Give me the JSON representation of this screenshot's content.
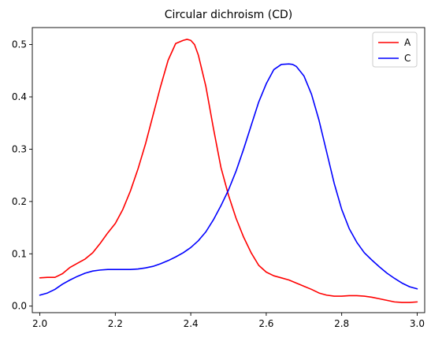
{
  "chart_data": {
    "type": "line",
    "title": "Circular dichroism (CD)",
    "xlabel": "",
    "ylabel": "",
    "xlim": [
      1.98,
      3.02
    ],
    "ylim": [
      -0.0125,
      0.5325
    ],
    "xticks": [
      "2.0",
      "2.2",
      "2.4",
      "2.6",
      "2.8",
      "3.0"
    ],
    "yticks": [
      "0.0",
      "0.1",
      "0.2",
      "0.3",
      "0.4",
      "0.5"
    ],
    "grid": false,
    "legend_position": "top-right",
    "series": [
      {
        "name": "A",
        "color": "#ff0000",
        "x": [
          2.0,
          2.02,
          2.04,
          2.06,
          2.08,
          2.1,
          2.12,
          2.14,
          2.16,
          2.18,
          2.2,
          2.22,
          2.24,
          2.26,
          2.28,
          2.3,
          2.32,
          2.34,
          2.36,
          2.38,
          2.39,
          2.4,
          2.41,
          2.42,
          2.44,
          2.46,
          2.48,
          2.5,
          2.52,
          2.54,
          2.56,
          2.58,
          2.6,
          2.62,
          2.64,
          2.66,
          2.68,
          2.7,
          2.72,
          2.74,
          2.76,
          2.78,
          2.8,
          2.82,
          2.84,
          2.86,
          2.88,
          2.9,
          2.92,
          2.94,
          2.96,
          2.98,
          3.0
        ],
        "y": [
          0.054,
          0.055,
          0.055,
          0.062,
          0.074,
          0.082,
          0.09,
          0.102,
          0.12,
          0.14,
          0.158,
          0.185,
          0.22,
          0.262,
          0.31,
          0.365,
          0.42,
          0.47,
          0.502,
          0.508,
          0.51,
          0.508,
          0.5,
          0.48,
          0.42,
          0.34,
          0.265,
          0.212,
          0.168,
          0.132,
          0.102,
          0.078,
          0.065,
          0.058,
          0.054,
          0.05,
          0.044,
          0.038,
          0.032,
          0.025,
          0.021,
          0.019,
          0.019,
          0.02,
          0.02,
          0.019,
          0.017,
          0.014,
          0.011,
          0.008,
          0.007,
          0.007,
          0.008
        ]
      },
      {
        "name": "C",
        "color": "#0000ff",
        "x": [
          2.0,
          2.02,
          2.04,
          2.06,
          2.08,
          2.1,
          2.12,
          2.14,
          2.16,
          2.18,
          2.2,
          2.22,
          2.24,
          2.26,
          2.28,
          2.3,
          2.32,
          2.34,
          2.36,
          2.38,
          2.4,
          2.42,
          2.44,
          2.46,
          2.48,
          2.5,
          2.52,
          2.54,
          2.56,
          2.58,
          2.6,
          2.62,
          2.64,
          2.66,
          2.67,
          2.68,
          2.7,
          2.72,
          2.74,
          2.76,
          2.78,
          2.8,
          2.82,
          2.84,
          2.86,
          2.88,
          2.9,
          2.92,
          2.94,
          2.96,
          2.98,
          3.0
        ],
        "y": [
          0.021,
          0.025,
          0.032,
          0.042,
          0.05,
          0.057,
          0.063,
          0.067,
          0.069,
          0.07,
          0.07,
          0.07,
          0.07,
          0.071,
          0.073,
          0.076,
          0.081,
          0.087,
          0.094,
          0.102,
          0.112,
          0.125,
          0.142,
          0.165,
          0.192,
          0.222,
          0.258,
          0.3,
          0.345,
          0.39,
          0.425,
          0.452,
          0.462,
          0.463,
          0.462,
          0.458,
          0.44,
          0.405,
          0.355,
          0.295,
          0.235,
          0.185,
          0.148,
          0.122,
          0.102,
          0.088,
          0.075,
          0.063,
          0.053,
          0.044,
          0.037,
          0.033
        ]
      }
    ]
  }
}
